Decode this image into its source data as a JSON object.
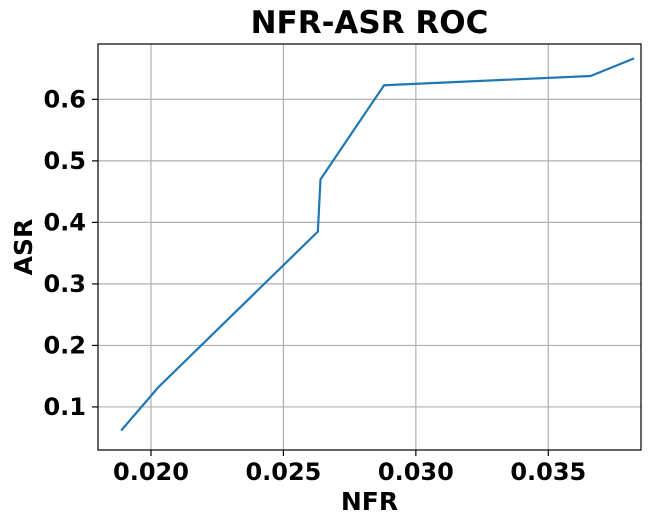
{
  "chart_data": {
    "type": "line",
    "title": "NFR-ASR ROC",
    "xlabel": "NFR",
    "ylabel": "ASR",
    "xlim": [
      0.018,
      0.0385
    ],
    "ylim": [
      0.03,
      0.69
    ],
    "xticks": [
      0.02,
      0.025,
      0.03,
      0.035
    ],
    "xtick_labels": [
      "0.020",
      "0.025",
      "0.030",
      "0.035"
    ],
    "yticks": [
      0.1,
      0.2,
      0.3,
      0.4,
      0.5,
      0.6
    ],
    "ytick_labels": [
      "0.1",
      "0.2",
      "0.3",
      "0.4",
      "0.5",
      "0.6"
    ],
    "grid": true,
    "series": [
      {
        "color": "#1f77b4",
        "x": [
          0.0189,
          0.0203,
          0.0263,
          0.0264,
          0.0288,
          0.0366,
          0.0382
        ],
        "y": [
          0.063,
          0.133,
          0.385,
          0.47,
          0.623,
          0.638,
          0.666
        ]
      }
    ]
  }
}
